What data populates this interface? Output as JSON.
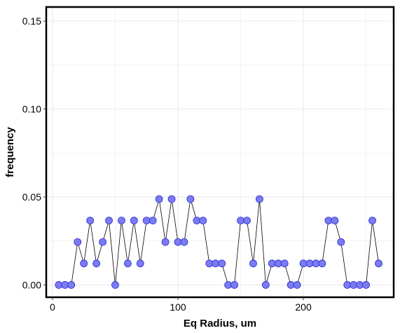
{
  "chart_data": {
    "type": "line",
    "title": "",
    "xlabel": "Eq Radius, um",
    "ylabel": "frequency",
    "xlim": [
      -5,
      272
    ],
    "ylim": [
      -0.007,
      0.158
    ],
    "xticks": [
      0,
      100,
      200
    ],
    "yticks": [
      0.0,
      0.05,
      0.1,
      0.15
    ],
    "ytick_labels": [
      "0.00",
      "0.05",
      "0.10",
      "0.15"
    ],
    "grid": true,
    "legend": "none",
    "colors": {
      "marker_fill": "#7b7bf2",
      "marker_stroke": "#2b2bd0",
      "line": "#000000",
      "grid": "#ebebeb",
      "frame": "#000000"
    },
    "series": [
      {
        "x": [
          5,
          10,
          15,
          20,
          25,
          30,
          35,
          40,
          45,
          50,
          55,
          60,
          65,
          70,
          75,
          80,
          85,
          90,
          95,
          100,
          105,
          110,
          115,
          120,
          125,
          130,
          135,
          140,
          145,
          150,
          155,
          160,
          165,
          170,
          175,
          180,
          185,
          190,
          195,
          200,
          205,
          210,
          215,
          220,
          225,
          230,
          235,
          240,
          245,
          250,
          255,
          260
        ],
        "y": [
          0.0,
          0.0,
          0.0,
          0.0244,
          0.0122,
          0.0366,
          0.0122,
          0.0244,
          0.0366,
          0.0,
          0.0366,
          0.0122,
          0.0366,
          0.0122,
          0.0366,
          0.0366,
          0.0488,
          0.0244,
          0.0488,
          0.0244,
          0.0244,
          0.0488,
          0.0366,
          0.0366,
          0.0122,
          0.0122,
          0.0122,
          0.0,
          0.0,
          0.0366,
          0.0366,
          0.0122,
          0.0488,
          0.0,
          0.0122,
          0.0122,
          0.0122,
          0.0,
          0.0,
          0.0122,
          0.0122,
          0.0122,
          0.0122,
          0.0366,
          0.0366,
          0.0244,
          0.0,
          0.0,
          0.0,
          0.0,
          0.0366,
          0.0122
        ]
      }
    ]
  }
}
